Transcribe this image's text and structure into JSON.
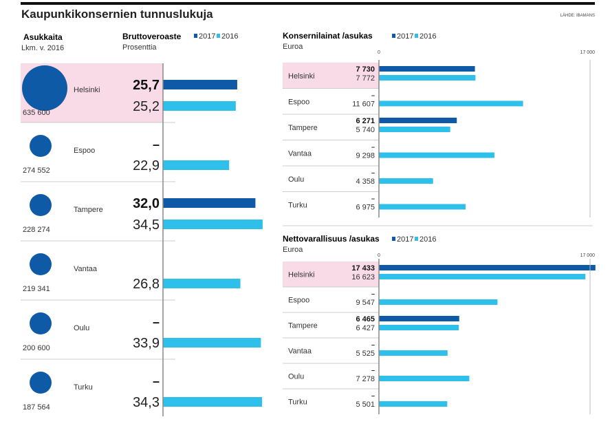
{
  "title": "Kaupunkikonsernien tunnuslukuja",
  "source": "LÄHDE: IBAMANS",
  "colors": {
    "y2017": "#0f5aa6",
    "y2016": "#2ec0ea",
    "highlight": "#f9dbe8",
    "circle": "#0f5aa6"
  },
  "legend": {
    "y2017": "2017",
    "y2016": "2016"
  },
  "chart_data": [
    {
      "type": "bubble",
      "title": "Asukkaita",
      "subtitle": "Lkm. v. 2016",
      "categories": [
        "Helsinki",
        "Espoo",
        "Tampere",
        "Vantaa",
        "Oulu",
        "Turku"
      ],
      "values": [
        635600,
        274552,
        228274,
        219341,
        200600,
        187564
      ],
      "labels": [
        "635 600",
        "274 552",
        "228 274",
        "219 341",
        "200 600",
        "187 564"
      ]
    },
    {
      "type": "bar",
      "title": "Bruttoveroaste",
      "subtitle": "Prosenttia",
      "categories": [
        "Helsinki",
        "Espoo",
        "Tampere",
        "Vantaa",
        "Oulu",
        "Turku"
      ],
      "series": [
        {
          "name": "2017",
          "values": [
            25.7,
            null,
            32.0,
            null,
            null,
            null
          ],
          "labels": [
            "25,7",
            "–",
            "32,0",
            "",
            "–",
            "–"
          ]
        },
        {
          "name": "2016",
          "values": [
            25.2,
            22.9,
            34.5,
            26.8,
            33.9,
            34.3
          ],
          "labels": [
            "25,2",
            "22,9",
            "34,5",
            "26,8",
            "33,9",
            "34,3"
          ]
        }
      ]
    },
    {
      "type": "bar",
      "title": "Konsernilainat /asukas",
      "subtitle": "Euroa",
      "xlim": [
        0,
        17000
      ],
      "tick_labels": [
        "0",
        "17 000"
      ],
      "categories": [
        "Helsinki",
        "Espoo",
        "Tampere",
        "Vantaa",
        "Oulu",
        "Turku"
      ],
      "series": [
        {
          "name": "2017",
          "values": [
            7730,
            null,
            6271,
            null,
            null,
            null
          ],
          "labels": [
            "7 730",
            "–",
            "6 271",
            "–",
            "–",
            "–"
          ]
        },
        {
          "name": "2016",
          "values": [
            7772,
            11607,
            5740,
            9298,
            4358,
            6975
          ],
          "labels": [
            "7 772",
            "11 607",
            "5 740",
            "9 298",
            "4 358",
            "6 975"
          ]
        }
      ]
    },
    {
      "type": "bar",
      "title": "Nettovarallisuus /asukas",
      "subtitle": "Euroa",
      "xlim": [
        0,
        17000
      ],
      "tick_labels": [
        "0",
        "17 000"
      ],
      "categories": [
        "Helsinki",
        "Espoo",
        "Tampere",
        "Vantaa",
        "Oulu",
        "Turku"
      ],
      "series": [
        {
          "name": "2017",
          "values": [
            17433,
            null,
            6465,
            null,
            null,
            null
          ],
          "labels": [
            "17 433",
            "–",
            "6 465",
            "–",
            "–",
            "–"
          ]
        },
        {
          "name": "2016",
          "values": [
            16623,
            9547,
            6427,
            5525,
            7278,
            5501
          ],
          "labels": [
            "16 623",
            "9 547",
            "6 427",
            "5 525",
            "7 278",
            "5 501"
          ]
        }
      ]
    }
  ]
}
